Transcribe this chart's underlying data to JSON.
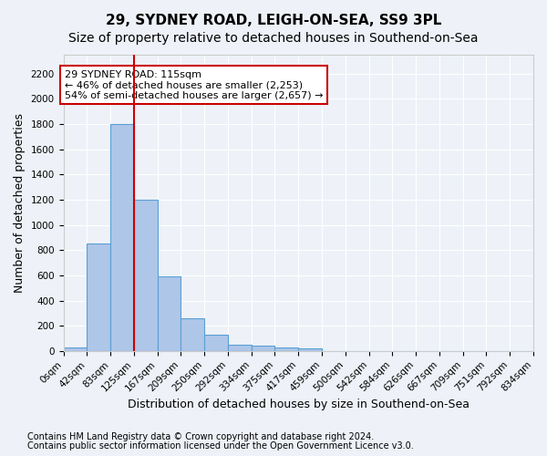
{
  "title": "29, SYDNEY ROAD, LEIGH-ON-SEA, SS9 3PL",
  "subtitle": "Size of property relative to detached houses in Southend-on-Sea",
  "xlabel": "Distribution of detached houses by size in Southend-on-Sea",
  "ylabel": "Number of detached properties",
  "bar_values": [
    25,
    850,
    1800,
    1200,
    590,
    260,
    130,
    50,
    45,
    30,
    18,
    0,
    0,
    0,
    0,
    0,
    0,
    0,
    0,
    0
  ],
  "bar_labels": [
    "0sqm",
    "42sqm",
    "83sqm",
    "125sqm",
    "167sqm",
    "209sqm",
    "250sqm",
    "292sqm",
    "334sqm",
    "375sqm",
    "417sqm",
    "459sqm",
    "500sqm",
    "542sqm",
    "584sqm",
    "626sqm",
    "667sqm",
    "709sqm",
    "751sqm",
    "792sqm",
    "834sqm"
  ],
  "bar_color": "#aec6e8",
  "bar_edgecolor": "#5a9fd4",
  "bar_linewidth": 0.8,
  "vline_color": "#cc0000",
  "vline_x": 3.0,
  "annotation_text": "29 SYDNEY ROAD: 115sqm\n← 46% of detached houses are smaller (2,253)\n54% of semi-detached houses are larger (2,657) →",
  "annotation_box_color": "#ffffff",
  "annotation_box_edgecolor": "#cc0000",
  "ylim": [
    0,
    2350
  ],
  "yticks": [
    0,
    200,
    400,
    600,
    800,
    1000,
    1200,
    1400,
    1600,
    1800,
    2000,
    2200
  ],
  "footnote1": "Contains HM Land Registry data © Crown copyright and database right 2024.",
  "footnote2": "Contains public sector information licensed under the Open Government Licence v3.0.",
  "bg_color": "#eef2f8",
  "plot_bg_color": "#eef2f8",
  "title_fontsize": 11,
  "subtitle_fontsize": 10,
  "xlabel_fontsize": 9,
  "ylabel_fontsize": 9,
  "tick_fontsize": 7.5,
  "annotation_fontsize": 8,
  "footnote_fontsize": 7
}
